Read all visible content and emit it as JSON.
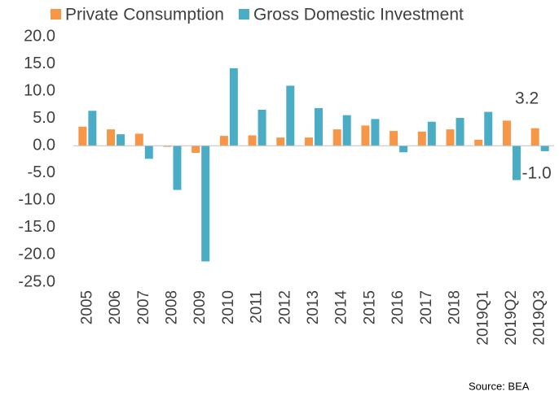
{
  "chart_data": {
    "type": "bar",
    "categories": [
      "2005",
      "2006",
      "2007",
      "2008",
      "2009",
      "2010",
      "2011",
      "2012",
      "2013",
      "2014",
      "2015",
      "2016",
      "2017",
      "2018",
      "2019Q1",
      "2019Q2",
      "2019Q3"
    ],
    "series": [
      {
        "name": "Private Consumption",
        "color": "#f79646",
        "values": [
          3.5,
          3.0,
          2.2,
          -0.2,
          -1.3,
          1.8,
          1.9,
          1.5,
          1.5,
          3.0,
          3.7,
          2.7,
          2.6,
          3.0,
          1.1,
          4.6,
          3.2
        ],
        "value_labels": [
          null,
          null,
          null,
          null,
          null,
          null,
          null,
          null,
          null,
          null,
          null,
          null,
          null,
          null,
          null,
          null,
          "3.2"
        ]
      },
      {
        "name": "Gross Domestic Investment",
        "color": "#4bacc6",
        "values": [
          6.4,
          2.1,
          -2.4,
          -8.1,
          -21.2,
          14.2,
          6.6,
          11.0,
          6.9,
          5.6,
          4.9,
          -1.2,
          4.4,
          5.1,
          6.2,
          -6.3,
          -1.0
        ],
        "value_labels": [
          null,
          null,
          null,
          null,
          null,
          null,
          null,
          null,
          null,
          null,
          null,
          null,
          null,
          null,
          null,
          null,
          "-1.0"
        ]
      }
    ],
    "ylim": [
      -25,
      20
    ],
    "yticks": [
      {
        "value": 20,
        "label": "20.0"
      },
      {
        "value": 15,
        "label": "15.0"
      },
      {
        "value": 10,
        "label": "10.0"
      },
      {
        "value": 5,
        "label": "5.0"
      },
      {
        "value": 0,
        "label": "0.0"
      },
      {
        "value": -5,
        "label": "-5.0"
      },
      {
        "value": -10,
        "label": "-10.0"
      },
      {
        "value": -15,
        "label": "-15.0"
      },
      {
        "value": -20,
        "label": "-20.0"
      },
      {
        "value": -25,
        "label": "-25.0"
      }
    ],
    "grid": false,
    "source": "Source: BEA"
  }
}
